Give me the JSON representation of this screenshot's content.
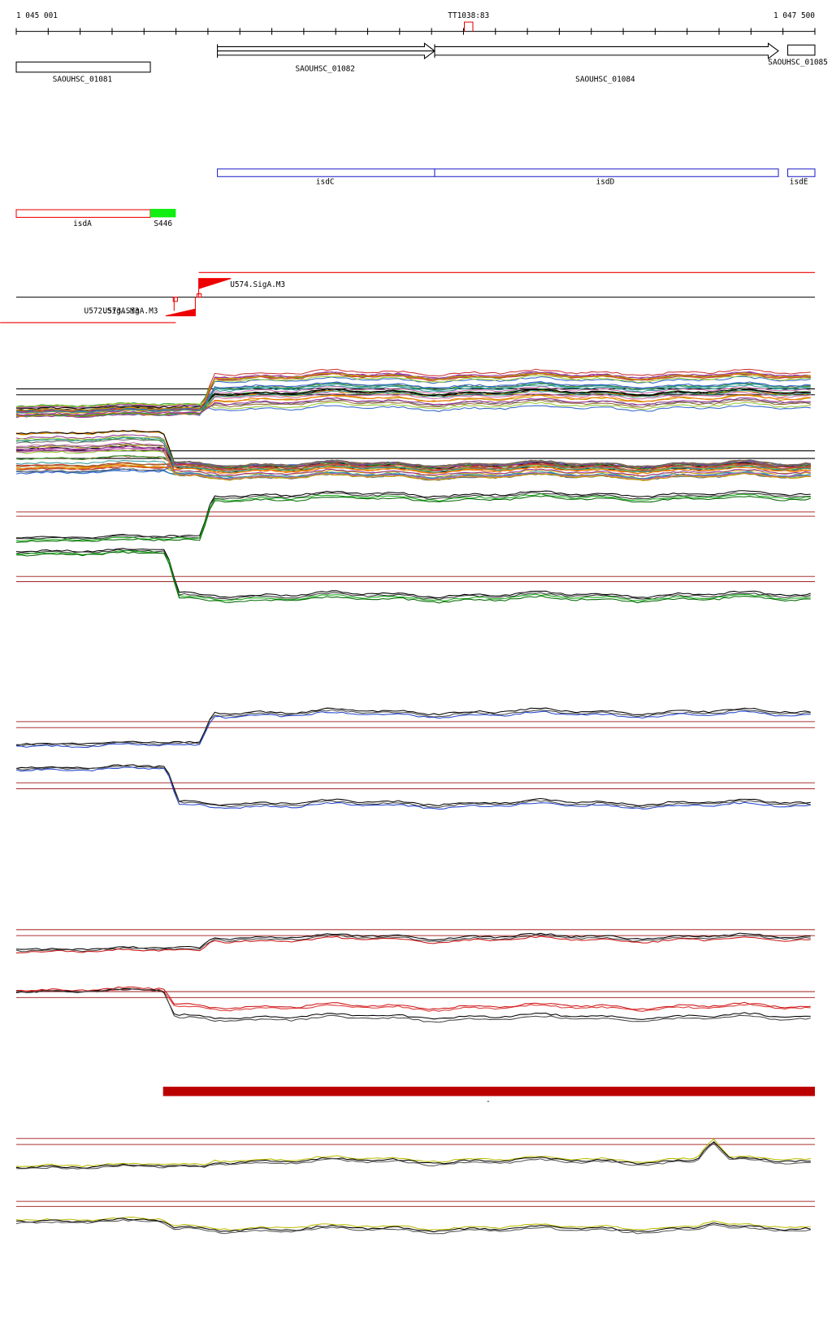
{
  "ruler": {
    "start": "1 045 001",
    "marker": "TT1038:83",
    "end": "1 047 500"
  },
  "genes": [
    "SAOUHSC_01081",
    "SAOUHSC_01082",
    "SAOUHSC_01084",
    "SAOUHSC_01085"
  ],
  "features": [
    "isdC",
    "isdD",
    "isdE"
  ],
  "regions": [
    "isdA",
    "S446"
  ],
  "promoters": [
    "U574.SigA.M3",
    "U572.SigA.M3",
    "U573.SigA.M3"
  ],
  "segment_label": "-"
}
